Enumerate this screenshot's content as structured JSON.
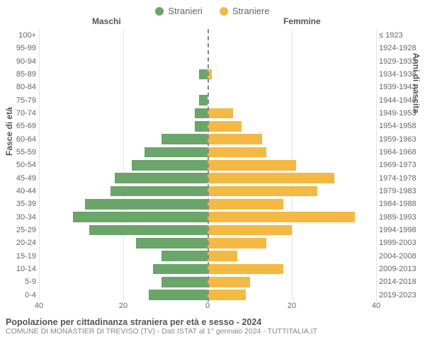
{
  "legend": {
    "male": {
      "label": "Stranieri",
      "color": "#6aa56a"
    },
    "female": {
      "label": "Straniere",
      "color": "#f4b942"
    }
  },
  "headers": {
    "male": "Maschi",
    "female": "Femmine"
  },
  "axis_left_title": "Fasce di età",
  "axis_right_title": "Anni di nascita",
  "x_axis": {
    "max": 40,
    "ticks_left": [
      40,
      20,
      0
    ],
    "ticks_right": [
      20,
      40
    ]
  },
  "chart": {
    "bar_height": 17.5,
    "grid_color": "#e5e5e5",
    "dash_color": "#888888",
    "rows": [
      {
        "age": "100+",
        "birth": "≤ 1923",
        "m": 0,
        "f": 0
      },
      {
        "age": "95-99",
        "birth": "1924-1928",
        "m": 0,
        "f": 0
      },
      {
        "age": "90-94",
        "birth": "1929-1933",
        "m": 0,
        "f": 0
      },
      {
        "age": "85-89",
        "birth": "1934-1938",
        "m": 2,
        "f": 1
      },
      {
        "age": "80-84",
        "birth": "1939-1943",
        "m": 0,
        "f": 0
      },
      {
        "age": "75-79",
        "birth": "1944-1948",
        "m": 2,
        "f": 0
      },
      {
        "age": "70-74",
        "birth": "1949-1953",
        "m": 3,
        "f": 6
      },
      {
        "age": "65-69",
        "birth": "1954-1958",
        "m": 3,
        "f": 8
      },
      {
        "age": "60-64",
        "birth": "1959-1963",
        "m": 11,
        "f": 13
      },
      {
        "age": "55-59",
        "birth": "1964-1968",
        "m": 15,
        "f": 14
      },
      {
        "age": "50-54",
        "birth": "1969-1973",
        "m": 18,
        "f": 21
      },
      {
        "age": "45-49",
        "birth": "1974-1978",
        "m": 22,
        "f": 30
      },
      {
        "age": "40-44",
        "birth": "1979-1983",
        "m": 23,
        "f": 26
      },
      {
        "age": "35-39",
        "birth": "1984-1988",
        "m": 29,
        "f": 18
      },
      {
        "age": "30-34",
        "birth": "1989-1993",
        "m": 32,
        "f": 35
      },
      {
        "age": "25-29",
        "birth": "1994-1998",
        "m": 28,
        "f": 20
      },
      {
        "age": "20-24",
        "birth": "1999-2003",
        "m": 17,
        "f": 14
      },
      {
        "age": "15-19",
        "birth": "2004-2008",
        "m": 11,
        "f": 7
      },
      {
        "age": "10-14",
        "birth": "2009-2013",
        "m": 13,
        "f": 18
      },
      {
        "age": "5-9",
        "birth": "2014-2018",
        "m": 11,
        "f": 10
      },
      {
        "age": "0-4",
        "birth": "2019-2023",
        "m": 14,
        "f": 9
      }
    ]
  },
  "footer": {
    "line1": "Popolazione per cittadinanza straniera per età e sesso - 2024",
    "line2": "COMUNE DI MONASTIER DI TREVISO (TV) - Dati ISTAT al 1° gennaio 2024 - TUTTITALIA.IT"
  }
}
